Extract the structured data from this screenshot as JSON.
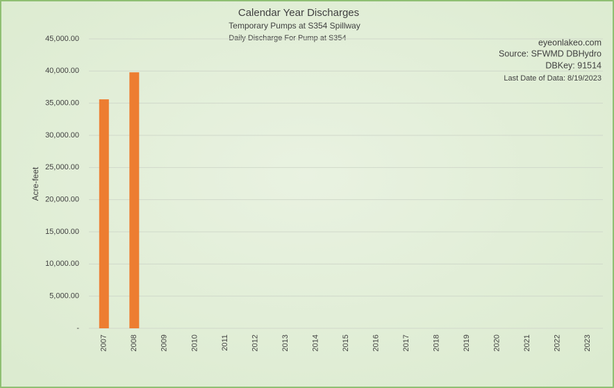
{
  "chart_data": {
    "type": "bar",
    "title": "Calendar Year Discharges",
    "subtitle": "Temporary Pumps at S354 Spillway",
    "subtitle2": "Daily Discharge For Pump at S354",
    "annotations": [
      "eyeonlakeo.com",
      "Source: SFWMD DBHydro",
      "DBKey: 91514",
      "Last Date of Data: 8/19/2023"
    ],
    "y_label": "Acre-feet",
    "categories": [
      "2007",
      "2008",
      "2009",
      "2010",
      "2011",
      "2012",
      "2013",
      "2014",
      "2015",
      "2016",
      "2017",
      "2018",
      "2019",
      "2020",
      "2021",
      "2022",
      "2023"
    ],
    "values": [
      35600,
      39800,
      0,
      0,
      0,
      0,
      0,
      0,
      0,
      0,
      0,
      0,
      0,
      0,
      0,
      0,
      0
    ],
    "color": "#ed7d31",
    "ylim": [
      0,
      45000
    ],
    "yticks": [
      {
        "value": 0,
        "label": "-"
      },
      {
        "value": 5000,
        "label": "5,000.00"
      },
      {
        "value": 10000,
        "label": "10,000.00"
      },
      {
        "value": 15000,
        "label": "15,000.00"
      },
      {
        "value": 20000,
        "label": "20,000.00"
      },
      {
        "value": 25000,
        "label": "25,000.00"
      },
      {
        "value": 30000,
        "label": "30,000.00"
      },
      {
        "value": 35000,
        "label": "35,000.00"
      },
      {
        "value": 40000,
        "label": "40,000.00"
      },
      {
        "value": 45000,
        "label": "45,000.00"
      }
    ],
    "grid": true
  }
}
